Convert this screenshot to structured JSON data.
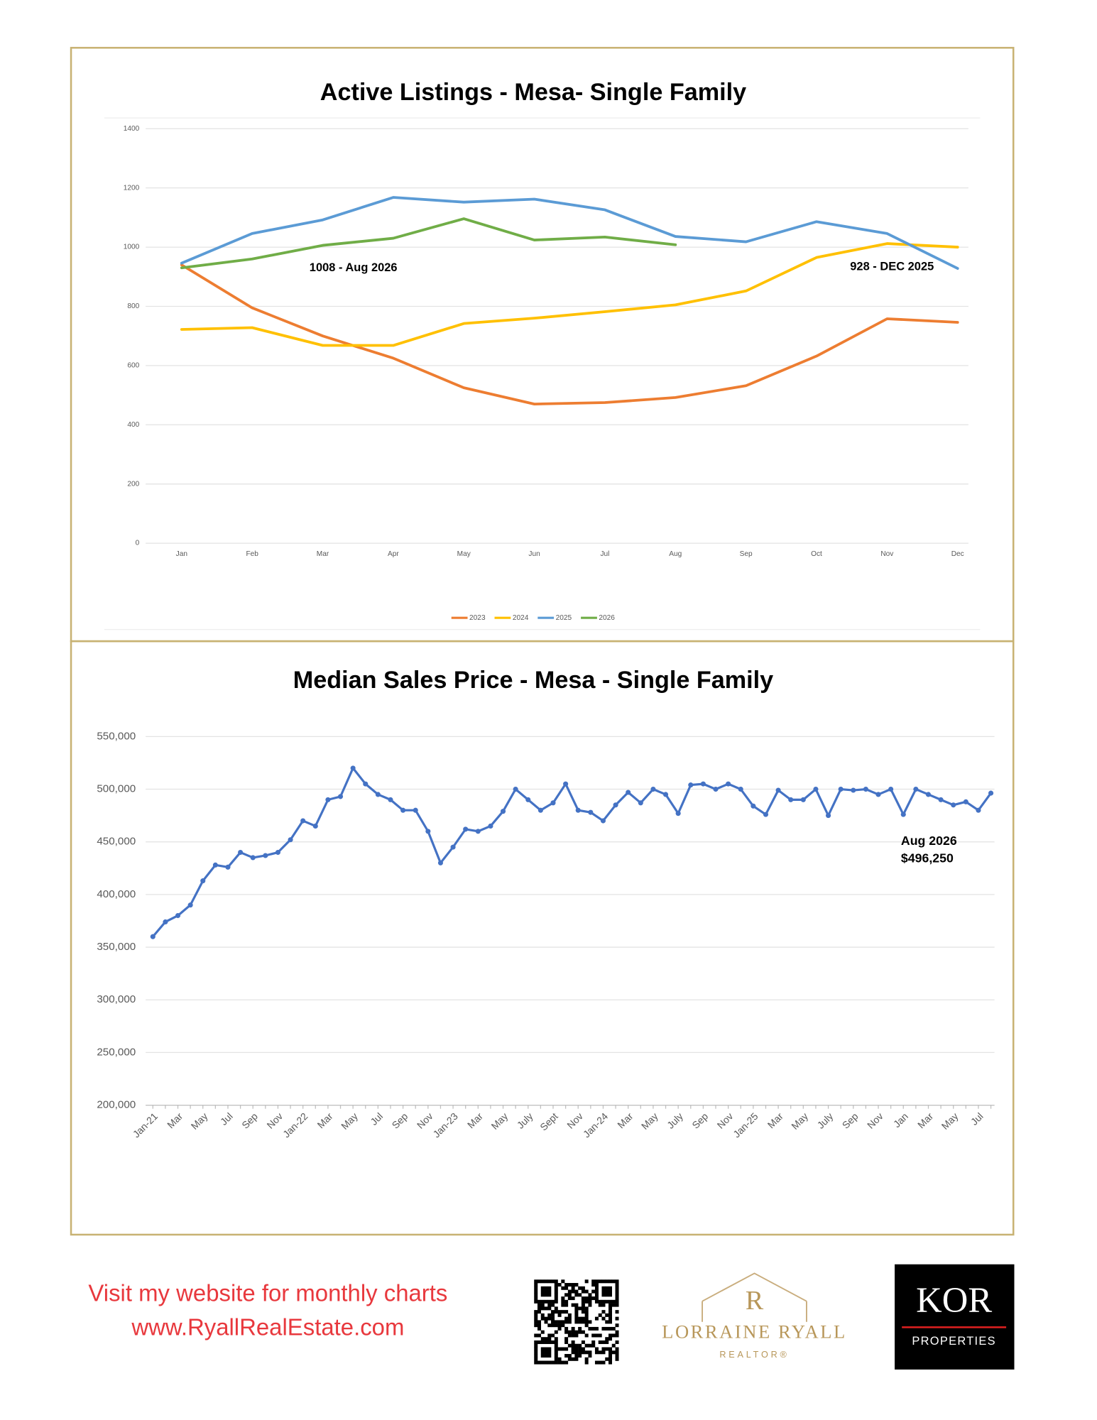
{
  "chart_data": [
    {
      "type": "line",
      "title": "Active Listings - Mesa-  Single Family",
      "categories": [
        "Jan",
        "Feb",
        "Mar",
        "Apr",
        "May",
        "Jun",
        "Jul",
        "Aug",
        "Sep",
        "Oct",
        "Nov",
        "Dec"
      ],
      "series": [
        {
          "name": "2023",
          "color": "#ed7d31",
          "values": [
            940,
            795,
            700,
            625,
            525,
            470,
            475,
            492,
            532,
            632,
            758,
            746
          ]
        },
        {
          "name": "2024",
          "color": "#ffc000",
          "values": [
            722,
            728,
            668,
            668,
            742,
            760,
            782,
            805,
            852,
            965,
            1012,
            1000
          ]
        },
        {
          "name": "2025",
          "color": "#5b9bd5",
          "values": [
            946,
            1046,
            1092,
            1168,
            1152,
            1162,
            1126,
            1036,
            1018,
            1086,
            1046,
            928
          ]
        },
        {
          "name": "2026",
          "color": "#70ad47",
          "values": [
            930,
            960,
            1006,
            1030,
            1096,
            1024,
            1034,
            1008,
            null,
            null,
            null,
            null
          ]
        }
      ],
      "ylim": [
        0,
        1400
      ],
      "yticks": [
        0,
        200,
        400,
        600,
        800,
        1000,
        1200,
        1400
      ],
      "grid": true,
      "legend": "bottom",
      "annotations": [
        "1008 - Aug 2026",
        "928 - DEC 2025"
      ]
    },
    {
      "type": "line",
      "title": "Median Sales Price -  Mesa - Single Family",
      "categories": [
        "Jan-21",
        null,
        "Mar",
        null,
        "May",
        null,
        "Jul",
        null,
        "Sep",
        null,
        "Nov",
        null,
        "Jan-22",
        null,
        "Mar",
        null,
        "May",
        null,
        "Jul",
        null,
        "Sep",
        null,
        "Nov",
        null,
        "Jan-23",
        null,
        "Mar",
        null,
        "May",
        null,
        "July",
        null,
        "Sept",
        null,
        "Nov",
        null,
        "Jan-24",
        null,
        "Mar",
        null,
        "May",
        null,
        "July",
        null,
        "Sep",
        null,
        "Nov",
        null,
        "Jan-25",
        null,
        "Mar",
        null,
        "May",
        null,
        "July",
        null,
        "Sep",
        null,
        "Nov",
        null,
        "Jan",
        null,
        "Mar",
        null,
        "May",
        null,
        "Jul",
        null
      ],
      "series": [
        {
          "color": "#4472c4",
          "markers": true,
          "values": [
            360000,
            374000,
            380000,
            390000,
            413000,
            428000,
            426000,
            440000,
            435000,
            437000,
            440000,
            452000,
            470000,
            465000,
            490000,
            493000,
            520000,
            505000,
            495000,
            490000,
            480000,
            480000,
            460000,
            430000,
            445000,
            462000,
            460000,
            465000,
            479000,
            500000,
            490000,
            480000,
            487000,
            505000,
            480000,
            478000,
            470000,
            485000,
            497000,
            487000,
            500000,
            495000,
            477000,
            504000,
            505000,
            500000,
            505000,
            500000,
            484000,
            476000,
            499000,
            490000,
            490000,
            500000,
            475000,
            500000,
            499000,
            500000,
            495000,
            500000,
            476000,
            500000,
            495000,
            490000,
            485000,
            488000,
            480000,
            496250
          ]
        }
      ],
      "ylim": [
        200000,
        550000
      ],
      "yticks": [
        {
          "value": 200000,
          "label": "200,000"
        },
        {
          "value": 250000,
          "label": "250,000"
        },
        {
          "value": 300000,
          "label": "300,000"
        },
        {
          "value": 350000,
          "label": "350,000"
        },
        {
          "value": 400000,
          "label": "400,000"
        },
        {
          "value": 450000,
          "label": "450,000"
        },
        {
          "value": 500000,
          "label": "500,000"
        },
        {
          "value": 550000,
          "label": "550,000"
        }
      ],
      "grid": true,
      "annotations": [
        "Aug 2026",
        "$496,250"
      ]
    }
  ],
  "footer": {
    "lines": [
      "Visit my website for monthly charts",
      "www.RyallRealEstate.com"
    ],
    "logo": {
      "monogram": "R",
      "name": "LORRAINE RYALL",
      "tagline": "REALTOR®"
    },
    "brokerage": {
      "name": "KOR",
      "tagline": "PROPERTIES"
    }
  }
}
